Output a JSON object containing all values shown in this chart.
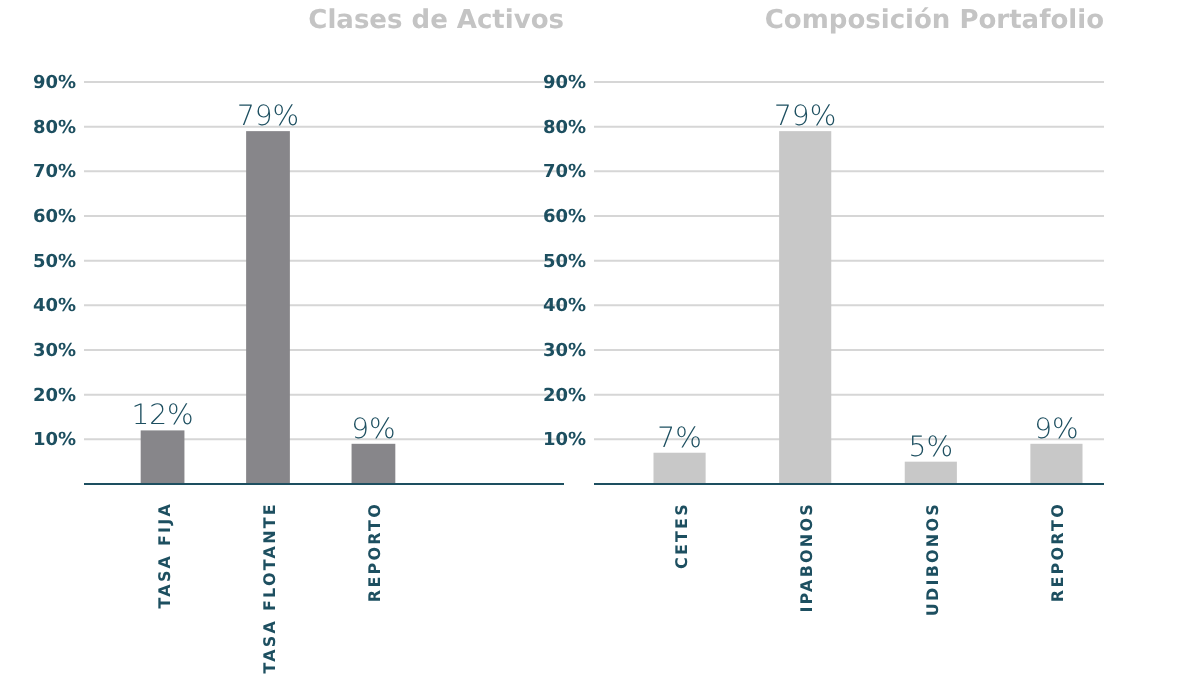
{
  "chart_data": [
    {
      "type": "bar",
      "title": "Clases de Activos",
      "categories": [
        "TASA FIJA",
        "TASA FLOTANTE",
        "REPORTO"
      ],
      "values": [
        12,
        79,
        9
      ],
      "color": "#87868a",
      "value_labels": [
        "12%",
        "79%",
        "9%"
      ],
      "ylim": [
        0,
        90
      ],
      "yticks": [
        {
          "value": 10,
          "label": "10%"
        },
        {
          "value": 20,
          "label": "20%"
        },
        {
          "value": 30,
          "label": "30%"
        },
        {
          "value": 40,
          "label": "40%"
        },
        {
          "value": 50,
          "label": "50%"
        },
        {
          "value": 60,
          "label": "60%"
        },
        {
          "value": 70,
          "label": "70%"
        },
        {
          "value": 80,
          "label": "80%"
        },
        {
          "value": 90,
          "label": "90%"
        }
      ],
      "grid": "y"
    },
    {
      "type": "bar",
      "title": "Composición Portafolio",
      "categories": [
        "CETES",
        "IPABONOS",
        "UDIBONOS",
        "REPORTO"
      ],
      "values": [
        7,
        79,
        5,
        9
      ],
      "color": "#c8c8c8",
      "value_labels": [
        "7%",
        "79%",
        "5%",
        "9%"
      ],
      "ylim": [
        0,
        90
      ],
      "yticks": [
        {
          "value": 10,
          "label": "10%"
        },
        {
          "value": 20,
          "label": "20%"
        },
        {
          "value": 30,
          "label": "30%"
        },
        {
          "value": 40,
          "label": "40%"
        },
        {
          "value": 50,
          "label": "50%"
        },
        {
          "value": 60,
          "label": "60%"
        },
        {
          "value": 70,
          "label": "70%"
        },
        {
          "value": 80,
          "label": "80%"
        },
        {
          "value": 90,
          "label": "90%"
        }
      ],
      "grid": "y"
    }
  ]
}
